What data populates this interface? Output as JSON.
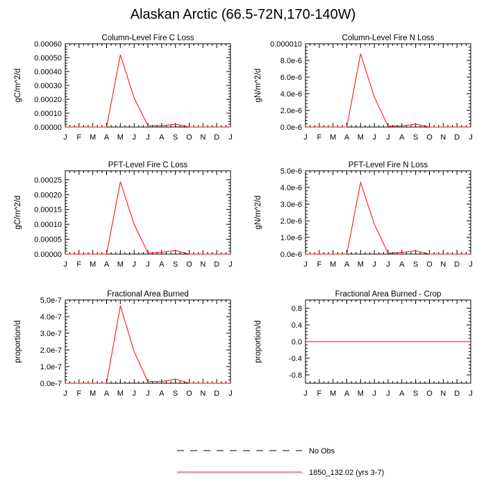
{
  "title": "Alaskan Arctic (66.5-72N,170-140W)",
  "months": [
    "J",
    "F",
    "M",
    "A",
    "M",
    "J",
    "J",
    "A",
    "S",
    "O",
    "N",
    "D",
    "J"
  ],
  "legend": {
    "no_obs_label": "No Obs",
    "model_label": "1850_132.02 (yrs 3-7)",
    "model_color": "#ff0000",
    "no_obs_color": "#000000"
  },
  "chart_data": [
    {
      "type": "line",
      "title": "Column-Level Fire C Loss",
      "ylabel": "gC/m^2/d",
      "ylim": [
        0,
        0.0006
      ],
      "yticks": [
        0,
        0.0001,
        0.0002,
        0.0003,
        0.0004,
        0.0005,
        0.0006
      ],
      "ytick_labels": [
        "0.00000",
        "0.00010",
        "0.00020",
        "0.00030",
        "0.00040",
        "0.00050",
        "0.00060"
      ],
      "series": [
        {
          "name": "1850_132.02 (yrs 3-7)",
          "values": [
            0,
            0,
            0,
            0,
            0.00052,
            0.00021,
            1e-05,
            1e-05,
            2e-05,
            0,
            0,
            0,
            0
          ]
        }
      ]
    },
    {
      "type": "line",
      "title": "Column-Level Fire N Loss",
      "ylabel": "gN/m^2/d",
      "ylim": [
        0,
        1e-05
      ],
      "yticks": [
        0,
        2e-06,
        4e-06,
        6e-06,
        8e-06,
        1e-05
      ],
      "ytick_labels": [
        "0.0e-6",
        "2.0e-6",
        "4.0e-6",
        "6.0e-6",
        "8.0e-6",
        "0.000010"
      ],
      "series": [
        {
          "name": "1850_132.02 (yrs 3-7)",
          "values": [
            0,
            0,
            0,
            0,
            8.8e-06,
            3.6e-06,
            1e-07,
            1.5e-07,
            3.5e-07,
            0,
            0,
            0,
            0
          ]
        }
      ]
    },
    {
      "type": "line",
      "title": "PFT-Level Fire C Loss",
      "ylabel": "gC/m^2/d",
      "ylim": [
        0,
        0.00028
      ],
      "yticks": [
        0,
        5e-05,
        0.0001,
        0.00015,
        0.0002,
        0.00025
      ],
      "ytick_labels": [
        "0.00000",
        "0.00005",
        "0.00010",
        "0.00015",
        "0.00020",
        "0.00025"
      ],
      "series": [
        {
          "name": "1850_132.02 (yrs 3-7)",
          "values": [
            0,
            0,
            0,
            0,
            0.000243,
            0.0001,
            4e-06,
            6e-06,
            1.2e-05,
            0,
            0,
            0,
            0
          ]
        }
      ]
    },
    {
      "type": "line",
      "title": "PFT-Level Fire N Loss",
      "ylabel": "gN/m^2/d",
      "ylim": [
        0,
        5e-06
      ],
      "yticks": [
        0,
        1e-06,
        2e-06,
        3e-06,
        4e-06,
        5e-06
      ],
      "ytick_labels": [
        "0.0e-6",
        "1.0e-6",
        "2.0e-6",
        "3.0e-6",
        "4.0e-6",
        "5.0e-6"
      ],
      "series": [
        {
          "name": "1850_132.02 (yrs 3-7)",
          "values": [
            0,
            0,
            0,
            0,
            4.3e-06,
            1.8e-06,
            5e-08,
            1e-07,
            2e-07,
            0,
            0,
            0,
            0
          ]
        }
      ]
    },
    {
      "type": "line",
      "title": "Fractional Area Burned",
      "ylabel": "proportion/d",
      "ylim": [
        0,
        5e-07
      ],
      "yticks": [
        0,
        1e-07,
        2e-07,
        3e-07,
        4e-07,
        5e-07
      ],
      "ytick_labels": [
        "0.0e-7",
        "1.0e-7",
        "2.0e-7",
        "3.0e-7",
        "4.0e-7",
        "5.0e-7"
      ],
      "series": [
        {
          "name": "1850_132.02 (yrs 3-7)",
          "values": [
            0,
            0,
            0,
            0,
            4.65e-07,
            1.9e-07,
            1e-08,
            1e-08,
            2.5e-08,
            0,
            0,
            0,
            0
          ]
        }
      ]
    },
    {
      "type": "line",
      "title": "Fractional Area Burned - Crop",
      "ylabel": "proportion/d",
      "ylim": [
        -1,
        1
      ],
      "yticks": [
        -0.8,
        -0.4,
        0,
        0.4,
        0.8
      ],
      "ytick_labels": [
        "-0.8",
        "-0.4",
        "0.0",
        "0.4",
        "0.8"
      ],
      "series": [
        {
          "name": "1850_132.02 (yrs 3-7)",
          "values": [
            0,
            0,
            0,
            0,
            0,
            0,
            0,
            0,
            0,
            0,
            0,
            0,
            0
          ]
        }
      ]
    }
  ]
}
